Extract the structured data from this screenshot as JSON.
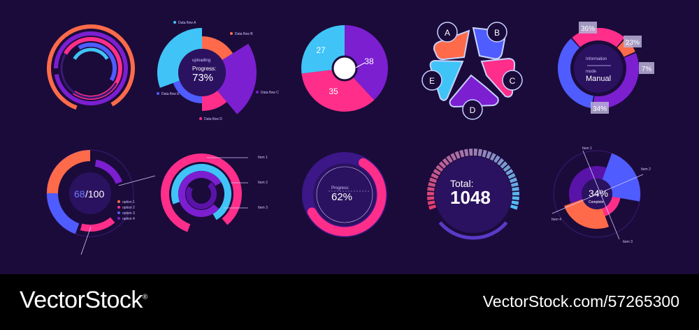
{
  "colors": {
    "background": "#1b0b3a",
    "orange": "#ff6b4a",
    "pink": "#ff2e8a",
    "purple": "#7b1fd1",
    "violet": "#5a13a8",
    "blue": "#4f5cff",
    "cyan": "#40c4f7",
    "dark": "#2b1260",
    "label": "#cfc6ff"
  },
  "chart_data": [
    {
      "type": "radial-rings",
      "rings": 4
    },
    {
      "type": "pie",
      "center": {
        "title": "uploading",
        "label": "Progress:",
        "value": "73%"
      },
      "series": [
        {
          "name": "Data flow A",
          "color": "#40c4f7"
        },
        {
          "name": "Data flow B",
          "color": "#ff6b4a"
        },
        {
          "name": "Data flow C",
          "color": "#7b1fd1"
        },
        {
          "name": "Data flow D",
          "color": "#ff2e8a"
        },
        {
          "name": "Data flow E",
          "color": "#4f5cff"
        }
      ]
    },
    {
      "type": "pie",
      "values": [
        27,
        38,
        35
      ],
      "labels": [
        "27",
        "38",
        "35"
      ]
    },
    {
      "type": "petal",
      "categories": [
        "A",
        "B",
        "C",
        "D",
        "E"
      ]
    },
    {
      "type": "donut",
      "center": {
        "line1": "Information",
        "line2": "mode",
        "line3": "Manual"
      },
      "labels": [
        "36%",
        "23%",
        "7%",
        "34%"
      ],
      "values": [
        36,
        23,
        7,
        34
      ]
    },
    {
      "type": "donut",
      "center": {
        "value": "68",
        "total": "/100"
      },
      "legend": [
        "option 1",
        "option 2",
        "option 3",
        "option 4"
      ]
    },
    {
      "type": "radial-rings",
      "legend": [
        "Item 1",
        "Item 2",
        "Item 3"
      ]
    },
    {
      "type": "progress",
      "label": "Progress:",
      "value": "62%",
      "progress": 0.62
    },
    {
      "type": "gauge",
      "label": "Total:",
      "value": "1048"
    },
    {
      "type": "pie",
      "center": {
        "value": "34%",
        "label": "Complete"
      },
      "legend": [
        "Item 1",
        "Item 2",
        "Item 3",
        "Item 4"
      ]
    }
  ],
  "footer": {
    "brand": "VectorStock",
    "brand_mark": "®",
    "url": "VectorStock.com/57265300"
  }
}
